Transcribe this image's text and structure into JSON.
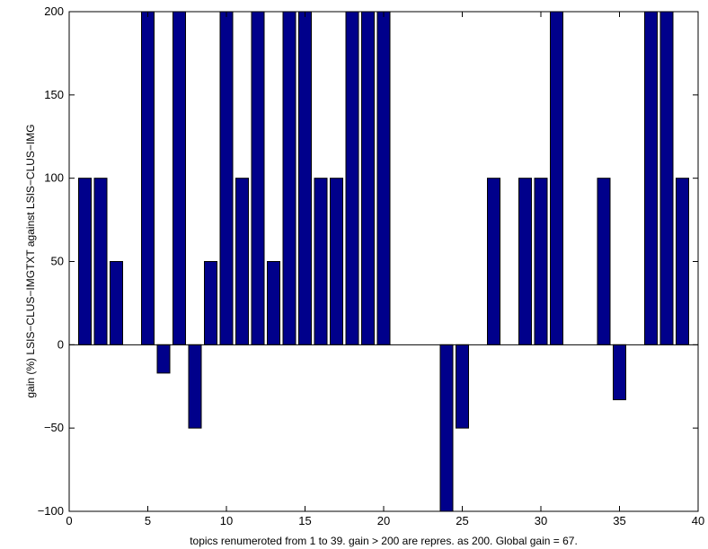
{
  "chart_data": {
    "type": "bar",
    "xlabel": "topics renumeroted from 1 to 39. gain > 200 are repres. as 200. Global gain = 67.",
    "ylabel": "gain (%)  LSIS−CLUS−IMGTXT against LSIS−CLUS−IMG",
    "xlim": [
      0,
      40
    ],
    "ylim": [
      -100,
      200
    ],
    "xticks": [
      0,
      5,
      10,
      15,
      20,
      25,
      30,
      35,
      40
    ],
    "yticks": [
      -100,
      -50,
      0,
      50,
      100,
      150,
      200
    ],
    "xtick_labels": [
      "0",
      "5",
      "10",
      "15",
      "20",
      "25",
      "30",
      "35",
      "40"
    ],
    "ytick_labels": [
      "−100",
      "−50",
      "0",
      "50",
      "100",
      "150",
      "200"
    ],
    "bar_width": 0.8,
    "bar_color": "#00008B",
    "grid": false,
    "x": [
      1,
      2,
      3,
      4,
      5,
      6,
      7,
      8,
      9,
      10,
      11,
      12,
      13,
      14,
      15,
      16,
      17,
      18,
      19,
      20,
      21,
      22,
      23,
      24,
      25,
      26,
      27,
      28,
      29,
      30,
      31,
      32,
      33,
      34,
      35,
      36,
      37,
      38,
      39
    ],
    "values": [
      100,
      100,
      50,
      0,
      200,
      -17,
      200,
      -50,
      50,
      200,
      100,
      200,
      50,
      200,
      200,
      100,
      100,
      200,
      200,
      200,
      0,
      0,
      0,
      -100,
      -50,
      0,
      100,
      0,
      100,
      100,
      200,
      0,
      0,
      100,
      -33,
      0,
      200,
      200,
      100
    ]
  }
}
